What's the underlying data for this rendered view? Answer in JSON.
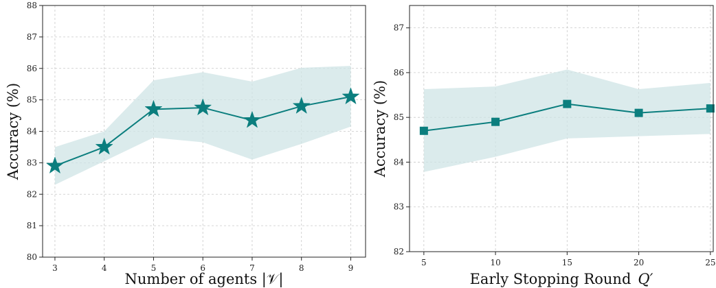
{
  "chart_data": [
    {
      "type": "line",
      "title": "",
      "xlabel": "Number of agents |𝒱|",
      "ylabel": "Accuracy (%)",
      "x": [
        3,
        4,
        5,
        6,
        7,
        8,
        9
      ],
      "xticks": [
        3,
        4,
        5,
        6,
        7,
        8,
        9
      ],
      "xlim": [
        2.75,
        9.3
      ],
      "ylim": [
        80,
        88
      ],
      "yticks": [
        80,
        81,
        82,
        83,
        84,
        85,
        86,
        87,
        88
      ],
      "grid": true,
      "marker": "star",
      "color": "#0b7e7e",
      "band_color": "#cfe4e6",
      "series": [
        {
          "name": "",
          "values": [
            82.9,
            83.5,
            84.7,
            84.75,
            84.35,
            84.8,
            85.1
          ],
          "lower": [
            82.3,
            83.05,
            83.8,
            83.65,
            83.1,
            83.6,
            84.15
          ],
          "upper": [
            83.5,
            84.0,
            85.62,
            85.88,
            85.58,
            86.02,
            86.08
          ]
        }
      ]
    },
    {
      "type": "line",
      "title": "",
      "xlabel": "Early Stopping Round",
      "xlabel_symbol": "Q′",
      "ylabel": "Accuracy (%)",
      "x": [
        5,
        10,
        15,
        20,
        25
      ],
      "xticks": [
        5,
        10,
        15,
        20,
        25
      ],
      "xlim": [
        4,
        25.2
      ],
      "ylim": [
        82,
        87.5
      ],
      "yticks": [
        82,
        83,
        84,
        85,
        86,
        87
      ],
      "grid": true,
      "marker": "square",
      "color": "#0b7e7e",
      "band_color": "#cfe4e6",
      "series": [
        {
          "name": "",
          "values": [
            84.7,
            84.9,
            85.3,
            85.1,
            85.2
          ],
          "lower": [
            83.78,
            84.12,
            84.53,
            84.58,
            84.63
          ],
          "upper": [
            85.63,
            85.69,
            86.07,
            85.63,
            85.77
          ]
        }
      ]
    }
  ]
}
